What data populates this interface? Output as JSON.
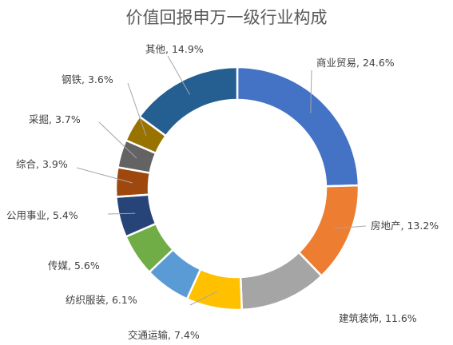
{
  "chart_data": {
    "type": "pie",
    "donut": true,
    "title": "价值回报申万一级行业构成",
    "slices": [
      {
        "name": "商业贸易",
        "value": 24.6,
        "label": "商业贸易, 24.6%",
        "color": "#4472C4"
      },
      {
        "name": "房地产",
        "value": 13.2,
        "label": "房地产, 13.2%",
        "color": "#ED7D31"
      },
      {
        "name": "建筑装饰",
        "value": 11.6,
        "label": "建筑装饰, 11.6%",
        "color": "#A5A5A5"
      },
      {
        "name": "交通运输",
        "value": 7.4,
        "label": "交通运输, 7.4%",
        "color": "#FFC000"
      },
      {
        "name": "纺织服装",
        "value": 6.1,
        "label": "纺织服装, 6.1%",
        "color": "#5B9BD5"
      },
      {
        "name": "传媒",
        "value": 5.6,
        "label": "传媒, 5.6%",
        "color": "#70AD47"
      },
      {
        "name": "公用事业",
        "value": 5.4,
        "label": "公用事业, 5.4%",
        "color": "#264478"
      },
      {
        "name": "综合",
        "value": 3.9,
        "label": "综合, 3.9%",
        "color": "#9E480E"
      },
      {
        "name": "采掘",
        "value": 3.7,
        "label": "采掘, 3.7%",
        "color": "#636363"
      },
      {
        "name": "钢铁",
        "value": 3.6,
        "label": "钢铁, 3.6%",
        "color": "#997300"
      },
      {
        "name": "其他",
        "value": 14.9,
        "label": "其他, 14.9%",
        "color": "#255E91"
      }
    ],
    "legend": "none"
  }
}
